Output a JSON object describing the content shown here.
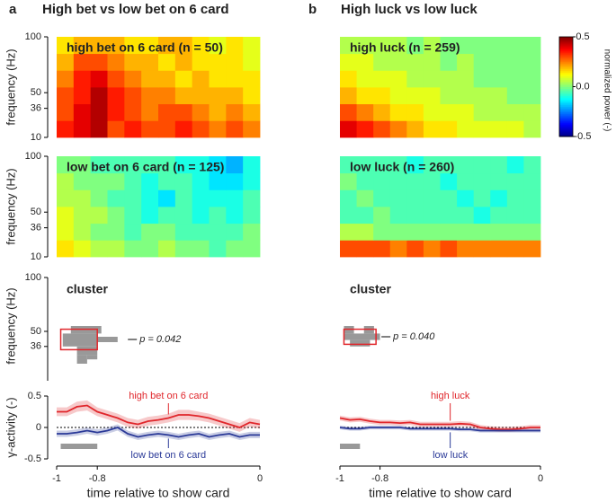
{
  "panels": [
    {
      "letter": "a",
      "title": "High bet vs low bet on 6 card"
    },
    {
      "letter": "b",
      "title": "High luck vs low luck"
    }
  ],
  "colorbar": {
    "label": "normalized power (-)",
    "lim": [
      -0.5,
      0.5
    ],
    "ticks": [
      0.5,
      {
        "value": 0,
        "label": "0.0"
      },
      -0.5
    ]
  },
  "chart_data": [
    {
      "type": "heatmap",
      "label": "high bet on 6 card (n = 50)",
      "ylabel": "frequency (Hz)",
      "xlim": [
        -1,
        0
      ],
      "ylim": [
        10,
        100
      ],
      "yticks": [
        10,
        36,
        50,
        100
      ],
      "z": [
        [
          0.35,
          0.4,
          0.45,
          0.3,
          0.35,
          0.3,
          0.3,
          0.35,
          0.3,
          0.25,
          0.3,
          0.25
        ],
        [
          0.3,
          0.4,
          0.45,
          0.35,
          0.3,
          0.25,
          0.3,
          0.3,
          0.25,
          0.2,
          0.25,
          0.2
        ],
        [
          0.3,
          0.35,
          0.45,
          0.35,
          0.3,
          0.25,
          0.25,
          0.2,
          0.2,
          0.2,
          0.2,
          0.15
        ],
        [
          0.25,
          0.35,
          0.4,
          0.3,
          0.25,
          0.2,
          0.2,
          0.15,
          0.2,
          0.15,
          0.15,
          0.15
        ],
        [
          0.2,
          0.3,
          0.3,
          0.25,
          0.2,
          0.2,
          0.15,
          0.2,
          0.15,
          0.15,
          0.15,
          0.1
        ],
        [
          0.15,
          0.2,
          0.2,
          0.2,
          0.15,
          0.15,
          0.2,
          0.2,
          0.15,
          0.1,
          0.15,
          0.1
        ]
      ]
    },
    {
      "type": "heatmap",
      "label": "low bet on 6 card (n = 125)",
      "ylabel": "frequency (Hz)",
      "xlim": [
        -1,
        0
      ],
      "ylim": [
        10,
        100
      ],
      "yticks": [
        10,
        36,
        50,
        100
      ],
      "z": [
        [
          0.15,
          0.1,
          0.05,
          0.05,
          0.0,
          0.0,
          0.05,
          0.0,
          0.0,
          -0.05,
          0.0,
          0.0
        ],
        [
          0.1,
          0.05,
          0.0,
          0.0,
          -0.05,
          0.0,
          0.0,
          -0.05,
          -0.05,
          -0.05,
          -0.05,
          0.0
        ],
        [
          0.1,
          0.05,
          0.05,
          0.0,
          -0.05,
          -0.1,
          -0.05,
          -0.05,
          -0.1,
          -0.05,
          -0.1,
          -0.05
        ],
        [
          0.05,
          0.05,
          0.0,
          -0.05,
          -0.05,
          -0.1,
          -0.15,
          -0.05,
          -0.1,
          -0.1,
          -0.1,
          -0.05
        ],
        [
          0.05,
          0.0,
          0.0,
          0.0,
          -0.05,
          -0.1,
          -0.05,
          -0.05,
          -0.1,
          -0.15,
          -0.15,
          -0.1
        ],
        [
          0.0,
          0.0,
          -0.05,
          -0.05,
          -0.05,
          -0.05,
          -0.05,
          -0.1,
          -0.1,
          -0.15,
          -0.2,
          -0.1
        ]
      ]
    },
    {
      "type": "cluster",
      "label": "cluster",
      "ylabel": "frequency (Hz)",
      "xlim": [
        -1,
        0
      ],
      "ylim": [
        10,
        100
      ],
      "yticks": [
        36,
        50,
        100
      ],
      "cells": [
        {
          "x": [
            -0.93,
            -0.78
          ],
          "y": [
            48,
            55
          ]
        },
        {
          "x": [
            -0.97,
            -0.8
          ],
          "y": [
            36,
            48
          ]
        },
        {
          "x": [
            -0.8,
            -0.7
          ],
          "y": [
            40,
            45
          ]
        },
        {
          "x": [
            -0.9,
            -0.8
          ],
          "y": [
            28,
            36
          ]
        },
        {
          "x": [
            -0.9,
            -0.85
          ],
          "y": [
            20,
            28
          ]
        },
        {
          "x": [
            -0.85,
            -0.8
          ],
          "y": [
            24,
            28
          ]
        }
      ],
      "box": {
        "x": [
          -0.98,
          -0.8
        ],
        "y": [
          33,
          52
        ]
      },
      "annotation": "p = 0.042"
    },
    {
      "type": "line",
      "ylabel": "γ-activity (-)",
      "xlabel": "time relative to show card",
      "xlim": [
        -1,
        0
      ],
      "ylim": [
        -0.5,
        0.5
      ],
      "yticks": [
        0.5,
        0,
        -0.5
      ],
      "xticks": [
        -1,
        -0.8,
        0
      ],
      "x": [
        -1,
        -0.95,
        -0.9,
        -0.85,
        -0.8,
        -0.75,
        -0.7,
        -0.65,
        -0.6,
        -0.55,
        -0.5,
        -0.45,
        -0.4,
        -0.35,
        -0.3,
        -0.25,
        -0.2,
        -0.15,
        -0.1,
        -0.05,
        0
      ],
      "series": [
        {
          "name": "high bet on 6 card",
          "color": "#e0262b",
          "values": [
            0.25,
            0.25,
            0.33,
            0.35,
            0.25,
            0.2,
            0.15,
            0.08,
            0.05,
            0.1,
            0.12,
            0.15,
            0.2,
            0.2,
            0.18,
            0.15,
            0.1,
            0.05,
            0.0,
            0.08,
            0.05
          ],
          "error": [
            0.07,
            0.07,
            0.08,
            0.08,
            0.07,
            0.07,
            0.07,
            0.07,
            0.07,
            0.07,
            0.07,
            0.07,
            0.08,
            0.08,
            0.07,
            0.07,
            0.07,
            0.07,
            0.07,
            0.07,
            0.07
          ]
        },
        {
          "name": "low bet on 6 card",
          "color": "#2b3a98",
          "values": [
            -0.1,
            -0.1,
            -0.08,
            -0.05,
            -0.08,
            -0.05,
            0.0,
            -0.1,
            -0.15,
            -0.12,
            -0.1,
            -0.12,
            -0.15,
            -0.12,
            -0.1,
            -0.15,
            -0.12,
            -0.1,
            -0.15,
            -0.12,
            -0.12
          ],
          "error": [
            0.05,
            0.05,
            0.05,
            0.05,
            0.05,
            0.05,
            0.05,
            0.05,
            0.05,
            0.05,
            0.05,
            0.05,
            0.05,
            0.05,
            0.05,
            0.05,
            0.05,
            0.05,
            0.05,
            0.05,
            0.05
          ]
        }
      ],
      "significance": {
        "x": [
          -0.98,
          -0.8
        ],
        "y": -0.3
      }
    },
    {
      "type": "heatmap",
      "label": "high luck (n = 259)",
      "xlim": [
        -1,
        0
      ],
      "ylim": [
        10,
        100
      ],
      "z": [
        [
          0.4,
          0.35,
          0.3,
          0.25,
          0.2,
          0.15,
          0.15,
          0.1,
          0.1,
          0.1,
          0.1,
          0.05
        ],
        [
          0.3,
          0.25,
          0.2,
          0.15,
          0.15,
          0.1,
          0.1,
          0.1,
          0.05,
          0.05,
          0.05,
          0.05
        ],
        [
          0.2,
          0.15,
          0.15,
          0.1,
          0.1,
          0.1,
          0.05,
          0.05,
          0.05,
          0.05,
          0.0,
          0.0
        ],
        [
          0.15,
          0.1,
          0.1,
          0.1,
          0.05,
          0.05,
          0.05,
          0.05,
          0.0,
          0.0,
          0.0,
          0.0
        ],
        [
          0.1,
          0.1,
          0.05,
          0.05,
          0.05,
          0.05,
          0.0,
          0.05,
          0.0,
          0.0,
          0.0,
          0.0
        ],
        [
          0.05,
          0.05,
          0.05,
          0.05,
          0.0,
          0.05,
          0.0,
          0.0,
          0.0,
          0.0,
          0.0,
          0.0
        ]
      ]
    },
    {
      "type": "heatmap",
      "label": "low luck (n = 260)",
      "xlim": [
        -1,
        0
      ],
      "ylim": [
        10,
        100
      ],
      "z": [
        [
          0.3,
          0.3,
          0.3,
          0.25,
          0.3,
          0.25,
          0.3,
          0.25,
          0.25,
          0.25,
          0.25,
          0.25
        ],
        [
          0.05,
          0.05,
          0.0,
          0.0,
          0.0,
          0.0,
          0.0,
          0.0,
          0.0,
          0.0,
          0.0,
          0.0
        ],
        [
          -0.05,
          -0.05,
          0.0,
          -0.05,
          -0.05,
          -0.05,
          -0.05,
          -0.05,
          -0.1,
          -0.05,
          -0.05,
          -0.05
        ],
        [
          -0.05,
          0.0,
          -0.05,
          -0.05,
          -0.05,
          -0.05,
          -0.05,
          -0.1,
          -0.05,
          -0.1,
          -0.05,
          -0.05
        ],
        [
          0.0,
          -0.05,
          -0.05,
          -0.05,
          -0.05,
          -0.05,
          -0.1,
          -0.05,
          -0.05,
          -0.05,
          -0.05,
          -0.05
        ],
        [
          -0.05,
          -0.05,
          -0.05,
          -0.05,
          -0.1,
          -0.05,
          -0.05,
          -0.05,
          -0.05,
          -0.05,
          -0.1,
          -0.05
        ]
      ]
    },
    {
      "type": "cluster",
      "label": "cluster",
      "xlim": [
        -1,
        0
      ],
      "ylim": [
        10,
        100
      ],
      "cells": [
        {
          "x": [
            -0.98,
            -0.93
          ],
          "y": [
            48,
            55
          ]
        },
        {
          "x": [
            -0.88,
            -0.83
          ],
          "y": [
            48,
            55
          ]
        },
        {
          "x": [
            -0.98,
            -0.8
          ],
          "y": [
            42,
            48
          ]
        },
        {
          "x": [
            -0.95,
            -0.85
          ],
          "y": [
            36,
            42
          ]
        }
      ],
      "box": {
        "x": [
          -0.98,
          -0.82
        ],
        "y": [
          38,
          52
        ]
      },
      "annotation": "p = 0.040"
    },
    {
      "type": "line",
      "xlabel": "time relative to show card",
      "xlim": [
        -1,
        0
      ],
      "ylim": [
        -0.5,
        0.5
      ],
      "xticks": [
        -1,
        -0.8,
        0
      ],
      "x": [
        -1,
        -0.95,
        -0.9,
        -0.85,
        -0.8,
        -0.75,
        -0.7,
        -0.65,
        -0.6,
        -0.55,
        -0.5,
        -0.45,
        -0.4,
        -0.35,
        -0.3,
        -0.25,
        -0.2,
        -0.15,
        -0.1,
        -0.05,
        0
      ],
      "series": [
        {
          "name": "high luck",
          "color": "#e0262b",
          "values": [
            0.15,
            0.12,
            0.13,
            0.1,
            0.08,
            0.08,
            0.07,
            0.08,
            0.05,
            0.05,
            0.05,
            0.05,
            0.06,
            0.05,
            0.0,
            -0.02,
            -0.03,
            -0.03,
            -0.02,
            0.0,
            0.0
          ],
          "error": [
            0.04,
            0.04,
            0.04,
            0.04,
            0.04,
            0.04,
            0.04,
            0.04,
            0.04,
            0.04,
            0.04,
            0.04,
            0.04,
            0.04,
            0.04,
            0.04,
            0.04,
            0.04,
            0.04,
            0.04,
            0.04
          ]
        },
        {
          "name": "low luck",
          "color": "#2b3a98",
          "values": [
            0.0,
            -0.02,
            -0.02,
            0.0,
            0.0,
            0.0,
            0.0,
            -0.02,
            -0.02,
            -0.02,
            -0.02,
            -0.02,
            -0.03,
            -0.03,
            -0.05,
            -0.05,
            -0.05,
            -0.05,
            -0.05,
            -0.05,
            -0.05
          ],
          "error": [
            0.03,
            0.03,
            0.03,
            0.03,
            0.03,
            0.03,
            0.03,
            0.03,
            0.03,
            0.03,
            0.03,
            0.03,
            0.03,
            0.03,
            0.03,
            0.03,
            0.03,
            0.03,
            0.03,
            0.03,
            0.03
          ]
        }
      ],
      "significance": {
        "x": [
          -1,
          -0.9
        ],
        "y": -0.3
      }
    }
  ]
}
